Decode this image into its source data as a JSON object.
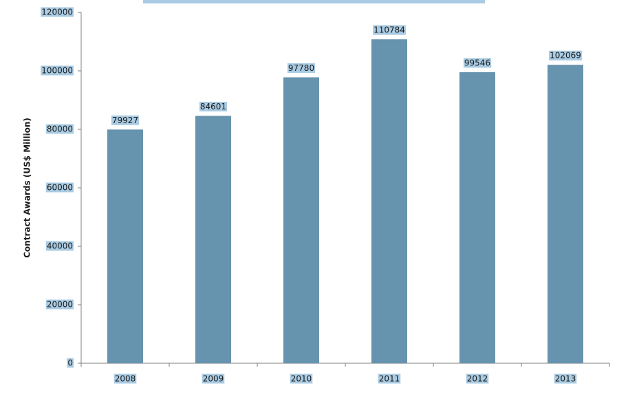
{
  "chart_data": {
    "type": "bar",
    "y_label": "Contract Awards (US$ Million)",
    "categories": [
      "2008",
      "2009",
      "2010",
      "2011",
      "2012",
      "2013"
    ],
    "values": [
      79927,
      84601,
      97780,
      110784,
      99546,
      102069
    ],
    "color": "#6693ae",
    "ylim": [
      0,
      120000
    ],
    "yticks": [
      0,
      20000,
      40000,
      60000,
      80000,
      100000,
      120000
    ],
    "grid": false
  }
}
